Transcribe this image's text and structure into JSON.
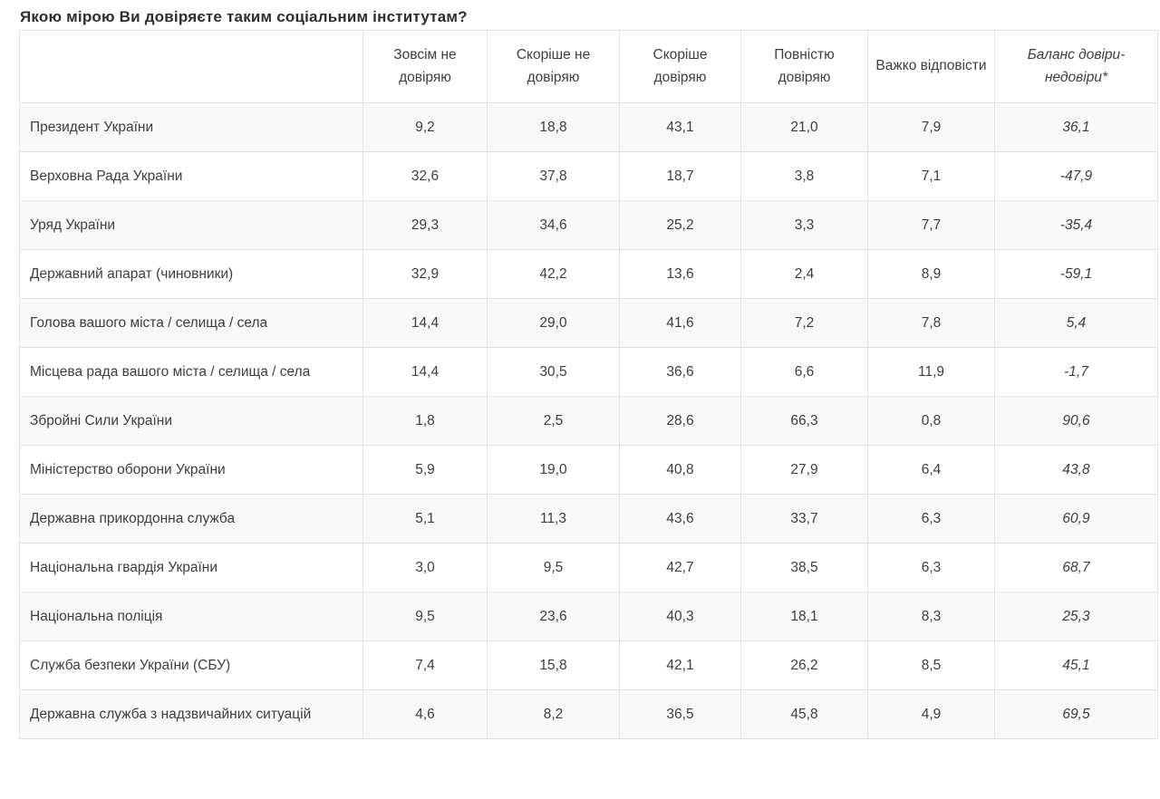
{
  "title": "Якою мірою Ви довіряєте таким соціальним інститутам?",
  "colors": {
    "background": "#ffffff",
    "row_alt_background": "#f8f8f8",
    "border": "#e4e4e4",
    "text": "#3e3e3e",
    "title_text": "#2e2e2e"
  },
  "chart_data": {
    "type": "table",
    "title": "Якою мірою Ви довіряєте таким соціальним інститутам?",
    "decimal_separator": ",",
    "columns": [
      "",
      "Зовсім не довіряю",
      "Скоріше не довіряю",
      "Скоріше довіряю",
      "Повністю довіряю",
      "Важко відповісти",
      "Баланс довіри-недовіри*"
    ],
    "balance_column_italic": true,
    "rows": [
      {
        "label": "Президент України",
        "values": [
          9.2,
          18.8,
          43.1,
          21.0,
          7.9,
          36.1
        ]
      },
      {
        "label": "Верховна Рада України",
        "values": [
          32.6,
          37.8,
          18.7,
          3.8,
          7.1,
          -47.9
        ]
      },
      {
        "label": "Уряд України",
        "values": [
          29.3,
          34.6,
          25.2,
          3.3,
          7.7,
          -35.4
        ]
      },
      {
        "label": "Державний апарат (чиновники)",
        "values": [
          32.9,
          42.2,
          13.6,
          2.4,
          8.9,
          -59.1
        ]
      },
      {
        "label": "Голова вашого міста / селища / села",
        "values": [
          14.4,
          29.0,
          41.6,
          7.2,
          7.8,
          5.4
        ]
      },
      {
        "label": "Місцева рада вашого міста / селища / села",
        "values": [
          14.4,
          30.5,
          36.6,
          6.6,
          11.9,
          -1.7
        ]
      },
      {
        "label": "Збройні Сили України",
        "values": [
          1.8,
          2.5,
          28.6,
          66.3,
          0.8,
          90.6
        ]
      },
      {
        "label": "Міністерство оборони України",
        "values": [
          5.9,
          19.0,
          40.8,
          27.9,
          6.4,
          43.8
        ]
      },
      {
        "label": "Державна прикордонна служба",
        "values": [
          5.1,
          11.3,
          43.6,
          33.7,
          6.3,
          60.9
        ]
      },
      {
        "label": "Національна гвардія України",
        "values": [
          3.0,
          9.5,
          42.7,
          38.5,
          6.3,
          68.7
        ]
      },
      {
        "label": "Національна поліція",
        "values": [
          9.5,
          23.6,
          40.3,
          18.1,
          8.3,
          25.3
        ]
      },
      {
        "label": "Служба безпеки України (СБУ)",
        "values": [
          7.4,
          15.8,
          42.1,
          26.2,
          8.5,
          45.1
        ]
      },
      {
        "label": "Державна служба з надзвичайних ситуацій",
        "values": [
          4.6,
          8.2,
          36.5,
          45.8,
          4.9,
          69.5
        ]
      }
    ]
  }
}
